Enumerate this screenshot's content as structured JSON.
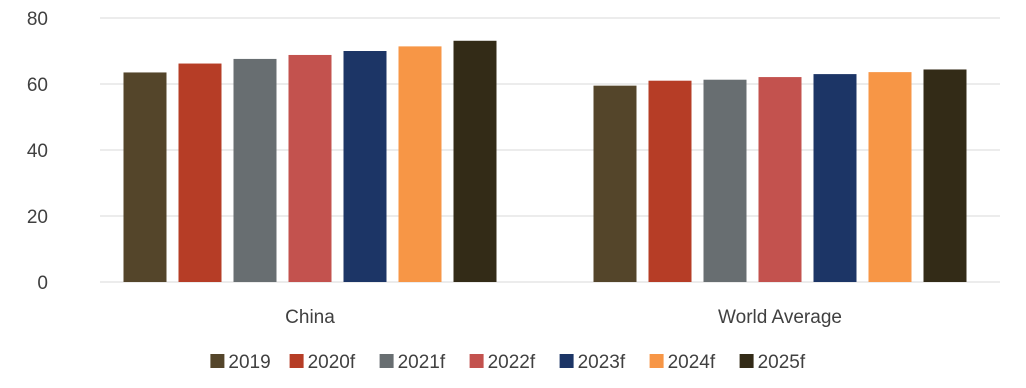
{
  "chart_data": {
    "type": "bar",
    "title": "",
    "xlabel": "",
    "ylabel": "",
    "categories": [
      "China",
      "World Average"
    ],
    "ylim": [
      0,
      80
    ],
    "yticks": [
      0,
      20,
      40,
      60,
      80
    ],
    "grid": true,
    "legend_position": "bottom",
    "series": [
      {
        "name": "2019",
        "color": "#54452a",
        "values": [
          63.5,
          59.5
        ]
      },
      {
        "name": "2020f",
        "color": "#b63d26",
        "values": [
          66.2,
          61.0
        ]
      },
      {
        "name": "2021f",
        "color": "#686e71",
        "values": [
          67.6,
          61.3
        ]
      },
      {
        "name": "2022f",
        "color": "#c3524e",
        "values": [
          68.8,
          62.1
        ]
      },
      {
        "name": "2023f",
        "color": "#1c3566",
        "values": [
          70.0,
          63.0
        ]
      },
      {
        "name": "2024f",
        "color": "#f79646",
        "values": [
          71.4,
          63.6
        ]
      },
      {
        "name": "2025f",
        "color": "#332b17",
        "values": [
          73.1,
          64.4
        ]
      }
    ]
  }
}
